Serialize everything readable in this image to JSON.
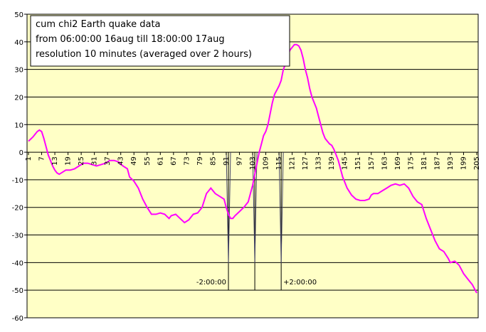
{
  "chart_data": {
    "type": "line",
    "title_lines": [
      "cum chi2  Earth quake data",
      "from 06:00:00 16aug till 18:00:00 17aug",
      "resolution 10 minutes (averaged over 2 hours)"
    ],
    "x": [
      1,
      3,
      5,
      6,
      7,
      8,
      9,
      10,
      11,
      12,
      13,
      14,
      15,
      16,
      18,
      20,
      22,
      24,
      26,
      28,
      30,
      32,
      34,
      36,
      38,
      40,
      42,
      44,
      46,
      47,
      49,
      51,
      53,
      55,
      57,
      59,
      61,
      63,
      65,
      66,
      68,
      70,
      72,
      74,
      76,
      78,
      80,
      82,
      84,
      86,
      88,
      90,
      91,
      92,
      93,
      94,
      95,
      97,
      99,
      101,
      103,
      105,
      106,
      107,
      108,
      109,
      110,
      111,
      112,
      113,
      114,
      115,
      116,
      117,
      118,
      119,
      120,
      121,
      122,
      123,
      124,
      125,
      126,
      127,
      128,
      129,
      130,
      131,
      132,
      133,
      134,
      135,
      136,
      137,
      138,
      139,
      140,
      141,
      142,
      143,
      144,
      145,
      146,
      148,
      150,
      152,
      154,
      156,
      157,
      158,
      160,
      162,
      164,
      166,
      168,
      170,
      172,
      174,
      176,
      178,
      180,
      182,
      184,
      186,
      188,
      190,
      192,
      193,
      195,
      197,
      199,
      201,
      203,
      205
    ],
    "values": [
      4,
      5.5,
      7.5,
      8,
      7.5,
      5,
      2,
      -1,
      -3,
      -5,
      -6.5,
      -7.5,
      -8,
      -7.5,
      -6.5,
      -6.5,
      -6,
      -5,
      -4,
      -4,
      -4.5,
      -5,
      -4.5,
      -4,
      -3,
      -3,
      -3.5,
      -5,
      -6,
      -9,
      -10.5,
      -13,
      -17,
      -20,
      -22.5,
      -22.5,
      -22,
      -22.5,
      -24,
      -23,
      -22.5,
      -24,
      -25.5,
      -24.5,
      -22.5,
      -22,
      -20,
      -15,
      -13,
      -15,
      -16,
      -17,
      -20,
      -22.5,
      -24,
      -24,
      -23,
      -21.5,
      -20,
      -18,
      -12,
      -4,
      0,
      3,
      6,
      7.5,
      10,
      14,
      18,
      21,
      22.5,
      24,
      26,
      30,
      32,
      35,
      37,
      38,
      39,
      39,
      38.5,
      37,
      34,
      30,
      27,
      23,
      20,
      18,
      16,
      13,
      10,
      7,
      5,
      4,
      3,
      2.5,
      1,
      -1,
      -3,
      -6,
      -9,
      -11,
      -13,
      -15.5,
      -17,
      -17.5,
      -17.5,
      -17,
      -15.5,
      -15,
      -15,
      -14,
      -13,
      -12,
      -11.5,
      -12,
      -11.5,
      -13,
      -16,
      -18,
      -19,
      -24,
      -28,
      -32,
      -35,
      -36,
      -38.5,
      -40,
      -39.5,
      -41,
      -44,
      -46,
      -48,
      -51
    ],
    "color": "#ff00ff",
    "xlim": [
      1,
      205
    ],
    "xticks": [
      1,
      7,
      13,
      19,
      25,
      31,
      37,
      43,
      49,
      55,
      61,
      67,
      73,
      79,
      85,
      91,
      97,
      103,
      109,
      115,
      121,
      127,
      133,
      139,
      145,
      151,
      157,
      163,
      169,
      175,
      181,
      187,
      193,
      199,
      205
    ],
    "ylim": [
      -60,
      50
    ],
    "yticks": [
      -60,
      -50,
      -40,
      -30,
      -20,
      -10,
      0,
      10,
      20,
      30,
      40,
      50
    ],
    "grid": true,
    "event_x": [
      92,
      104,
      116
    ],
    "event_labels": [
      "-2:00:00",
      null,
      "+2:00:00"
    ],
    "event_range": [
      0,
      -50
    ]
  }
}
